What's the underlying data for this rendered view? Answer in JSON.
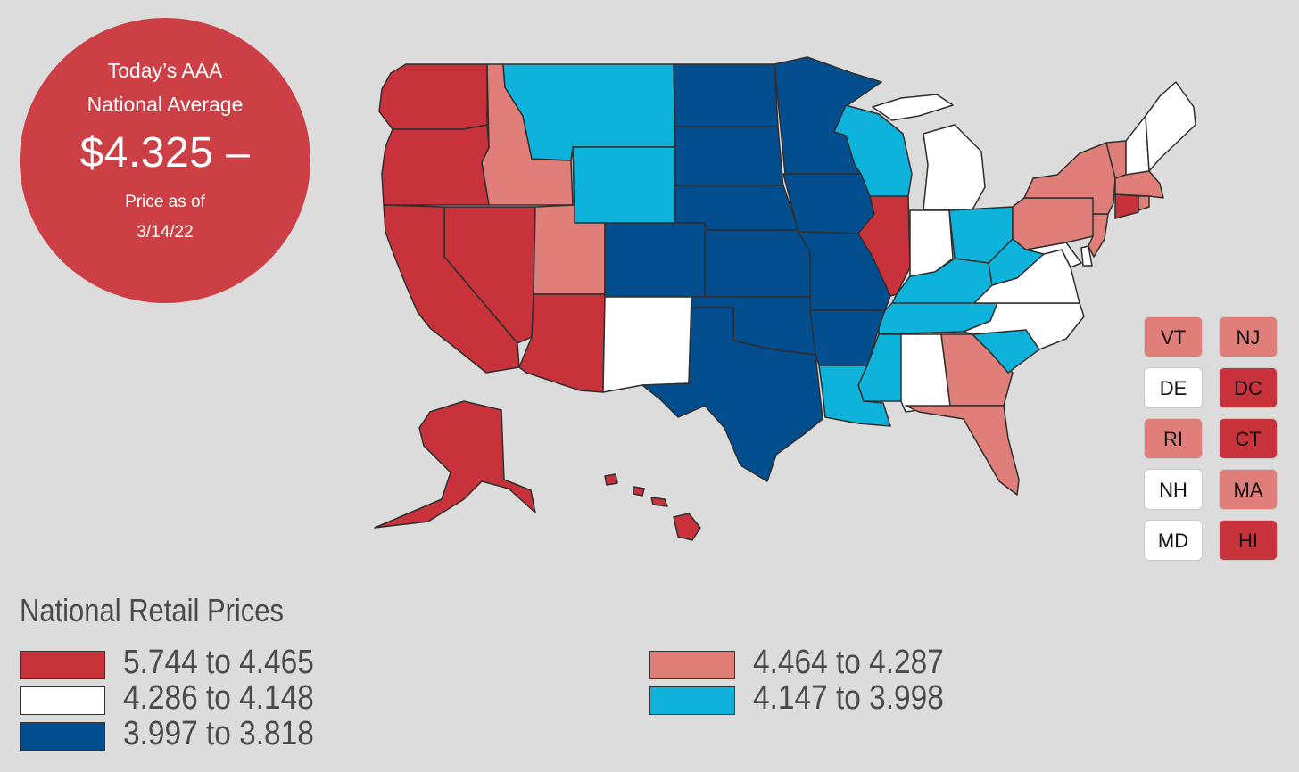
{
  "colors": {
    "red": "#c8333b",
    "pink": "#e07e79",
    "white": "#ffffff",
    "lightblue": "#0eb3db",
    "darkblue": "#034e8e",
    "background": "#dcdcdc",
    "badge": "#cb3f45"
  },
  "badge": {
    "line1": "Today’s AAA",
    "line2": "National Average",
    "price": "$4.325 –",
    "line3": "Price as of",
    "date": "3/14/22"
  },
  "states": {
    "WA": "red",
    "OR": "red",
    "CA": "red",
    "NV": "red",
    "AZ": "red",
    "IL": "red",
    "AK": "red",
    "HI": "red",
    "CT": "red",
    "DC": "red",
    "ID": "pink",
    "UT": "pink",
    "NY": "pink",
    "PA": "pink",
    "NJ": "pink",
    "MA": "pink",
    "GA": "pink",
    "FL": "pink",
    "VT": "pink",
    "RI": "pink",
    "MT": "lightblue",
    "WY": "lightblue",
    "WI": "lightblue",
    "OH": "lightblue",
    "KY": "lightblue",
    "WV": "lightblue",
    "TN": "lightblue",
    "MS": "lightblue",
    "LA": "lightblue",
    "SC": "lightblue",
    "NM": "white",
    "MI": "white",
    "IN": "white",
    "AL": "white",
    "NC": "white",
    "VA": "white",
    "ME": "white",
    "NH": "white",
    "DE": "white",
    "MD": "white",
    "ND": "darkblue",
    "SD": "darkblue",
    "NE": "darkblue",
    "KS": "darkblue",
    "OK": "darkblue",
    "TX": "darkblue",
    "MN": "darkblue",
    "IA": "darkblue",
    "MO": "darkblue",
    "AR": "darkblue",
    "CO": "darkblue"
  },
  "small_states": [
    {
      "code": "VT",
      "color": "pink"
    },
    {
      "code": "NJ",
      "color": "pink"
    },
    {
      "code": "DE",
      "color": "white"
    },
    {
      "code": "DC",
      "color": "red"
    },
    {
      "code": "RI",
      "color": "pink"
    },
    {
      "code": "CT",
      "color": "red"
    },
    {
      "code": "NH",
      "color": "white"
    },
    {
      "code": "MA",
      "color": "pink"
    },
    {
      "code": "MD",
      "color": "white"
    },
    {
      "code": "HI",
      "color": "red"
    }
  ],
  "legend": {
    "title": "National Retail Prices",
    "items": [
      {
        "label": "5.744 to 4.465",
        "color": "red"
      },
      {
        "label": "4.286 to 4.148",
        "color": "white"
      },
      {
        "label": "3.997 to 3.818",
        "color": "darkblue"
      },
      {
        "label": "4.464 to 4.287",
        "color": "pink"
      },
      {
        "label": "4.147 to 3.998",
        "color": "lightblue"
      }
    ]
  }
}
